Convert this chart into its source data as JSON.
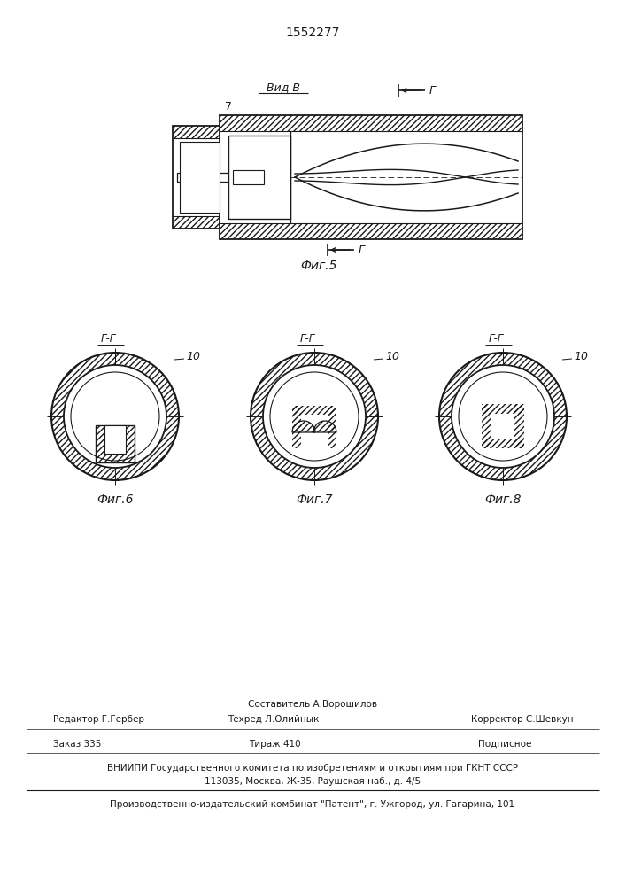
{
  "patent_number": "1552277",
  "bg_color": "#ffffff",
  "line_color": "#1a1a1a",
  "fig5_label": "Фиг.5",
  "fig6_label": "Фиг.6",
  "fig7_label": "Фиг.7",
  "fig8_label": "Фиг.8",
  "view_label": "Вид В",
  "section_label": "Г-Г",
  "section_char": "Г",
  "footer_line1": "Составитель А.Ворошилов",
  "footer_line2_left": "Редактор Г.Гербер",
  "footer_line2_mid": "Техред Л.Олийнык·",
  "footer_line2_right": "Корректор С.Шевкун",
  "footer_line3_left": "Заказ 335",
  "footer_line3_mid": "Тираж 410",
  "footer_line3_right": "Подписное",
  "footer_line4": "ВНИИПИ Государственного комитета по изобретениям и открытиям при ГКНТ СССР",
  "footer_line5": "113035, Москва, Ж-35, Раушская наб., д. 4/5",
  "footer_line6": "Производственно-издательский комбинат \"Патент\", г. Ужгород, ул. Гагарина, 101"
}
